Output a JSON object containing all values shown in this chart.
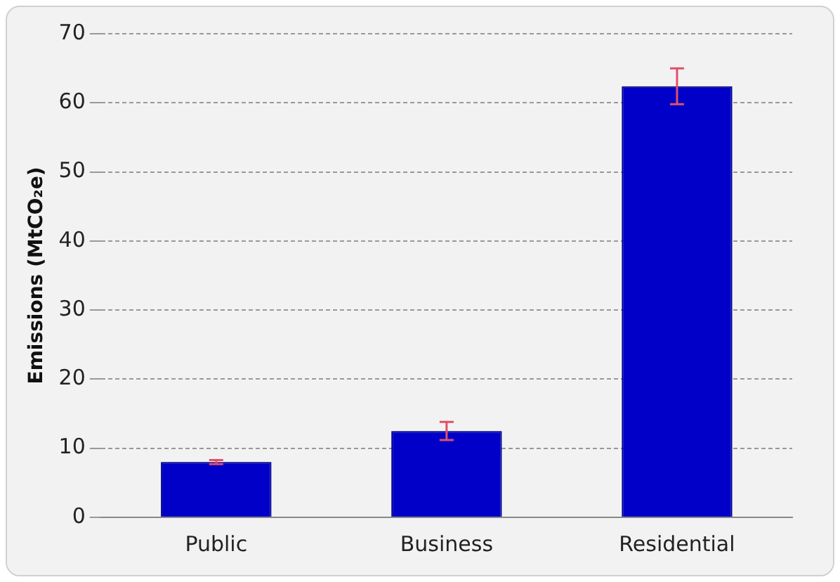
{
  "chart_data": {
    "type": "bar",
    "ylabel": "Emissions (MtCO₂e)",
    "categories": [
      "Public",
      "Business",
      "Residential"
    ],
    "values": [
      8.0,
      12.5,
      62.4
    ],
    "color": "#0000c8",
    "errors": [
      0.3,
      1.3,
      2.6
    ],
    "ylim": [
      0,
      70
    ],
    "yticks": [
      0,
      10,
      20,
      30,
      40,
      50,
      60,
      70
    ],
    "grid": "y",
    "legend": false
  }
}
